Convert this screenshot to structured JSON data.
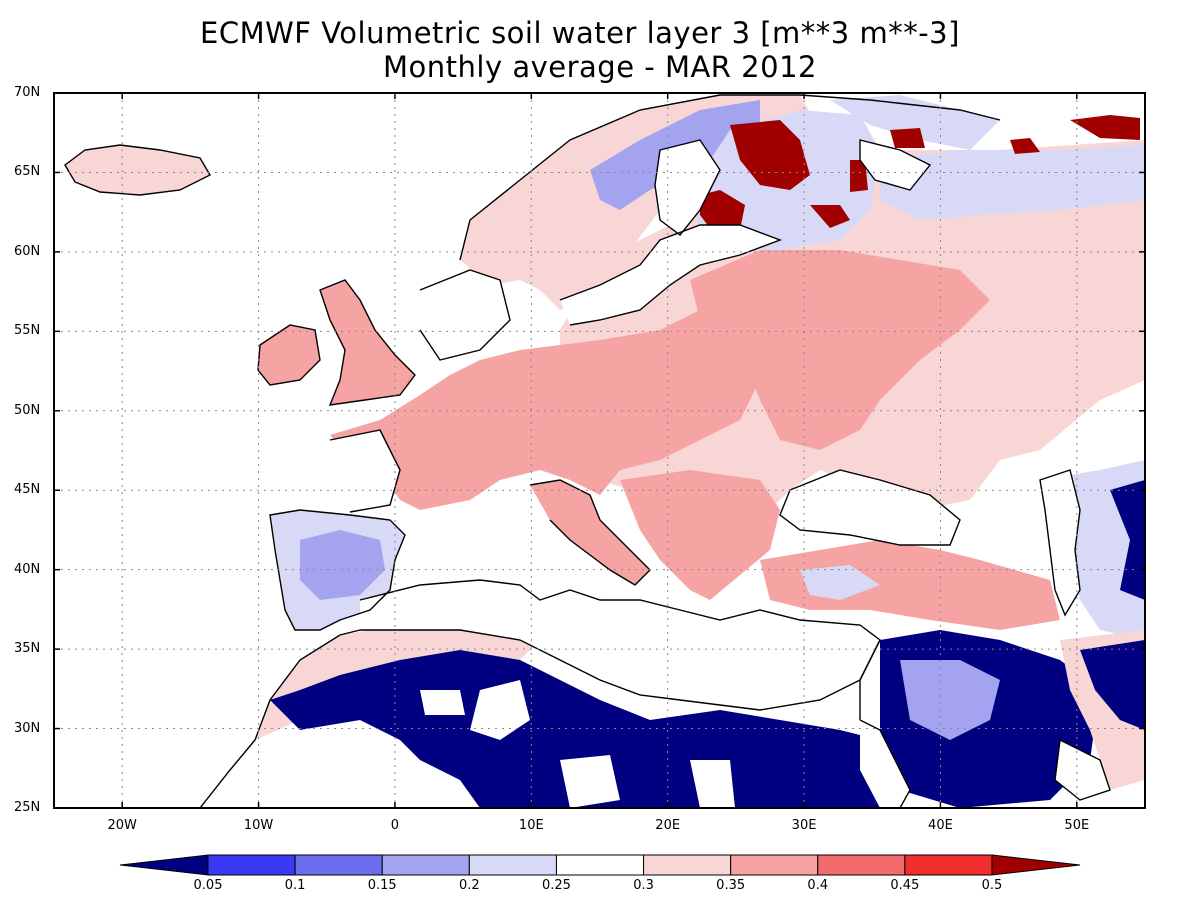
{
  "title": {
    "line1": "ECMWF Volumetric soil water layer 3 [m**3 m**-3]",
    "line2": "Monthly average - MAR 2012"
  },
  "map": {
    "lon_range": [
      -25,
      55
    ],
    "lat_range": [
      25,
      70
    ],
    "lat_ticks": [
      "25N",
      "30N",
      "35N",
      "40N",
      "45N",
      "50N",
      "55N",
      "60N",
      "65N",
      "70N"
    ],
    "lon_ticks": [
      "20W",
      "10W",
      "0",
      "10E",
      "20E",
      "30E",
      "40E",
      "50E"
    ],
    "grid": "dotted"
  },
  "colorbar": {
    "levels": [
      "0.05",
      "0.1",
      "0.15",
      "0.2",
      "0.25",
      "0.3",
      "0.35",
      "0.4",
      "0.45",
      "0.5"
    ],
    "colors": [
      "#000080",
      "#3a3af5",
      "#6d6df0",
      "#a3a3f0",
      "#d8d8f7",
      "#ffffff",
      "#f9d6d6",
      "#f5a3a3",
      "#f36b6b",
      "#f02e2e",
      "#a00000"
    ]
  },
  "fills": {
    "sea": "#ffffff",
    "outline": "#000000"
  }
}
